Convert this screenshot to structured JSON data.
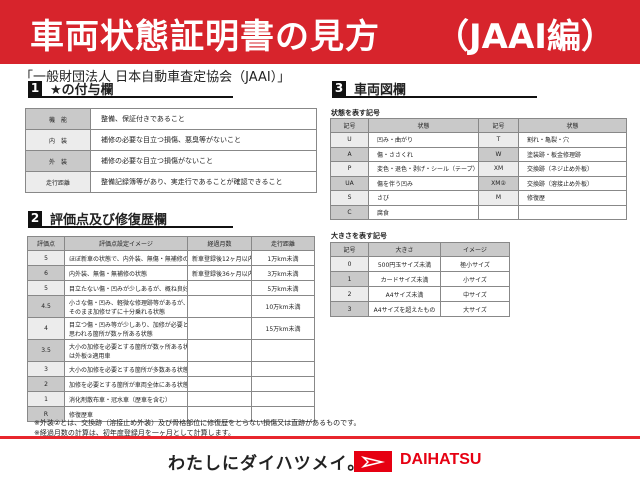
{
  "header": {
    "title": "車両状態証明書の見方",
    "subtitle": "（JAAI編）"
  },
  "organization": "「一般財団法人 日本自動車査定協会（JAAI）」",
  "section1": {
    "num": "1",
    "title": "★の付与欄",
    "rows": [
      {
        "k": "機　能",
        "v": "整備、保証付きであること"
      },
      {
        "k": "内　装",
        "v": "補修の必要な目立つ損傷、悪臭等がないこと"
      },
      {
        "k": "外　装",
        "v": "補修の必要な目立つ損傷がないこと"
      },
      {
        "k": "走行距離",
        "v": "整備記録簿等があり、実走行であることが確認できること"
      }
    ]
  },
  "section2": {
    "num": "2",
    "title": "評価点及び修復歴欄",
    "headers": [
      "評価点",
      "評価点設定イメージ",
      "経過月数",
      "走行距離"
    ],
    "rows": [
      {
        "score": "5",
        "image": "ほぼ新車の状態で、内外装、無傷・無補修の状態",
        "months": "新車登録後12ヶ月以内",
        "distance": "1万km未満"
      },
      {
        "score": "6",
        "image": "内外装、無傷・無補修の状態",
        "months": "新車登録後36ヶ月以内",
        "distance": "3万km未満"
      },
      {
        "score": "5",
        "image": "目立たない傷・凹みが少しあるが、概ね良好な状態",
        "months": "",
        "distance": "5万km未満"
      },
      {
        "score": "4.5",
        "image": "小さな傷・凹み、軽微な修理跡等があるが、",
        "image2": "そのまま加修せずに十分乗れる状態",
        "months": "",
        "distance": "10万km未満"
      },
      {
        "score": "4",
        "image": "目立つ傷・凹み等が少しあり、加修が必要と",
        "image2": "思われる箇所が数ヶ所ある状態",
        "months": "",
        "distance": "15万km未満"
      },
      {
        "score": "3.5",
        "image": "大小の加修を必要とする箇所が数ヶ所ある状態又",
        "image2": "は外板②適用車",
        "months": "",
        "distance": ""
      },
      {
        "score": "3",
        "image": "大小の加修を必要とする箇所が多数ある状態",
        "months": "",
        "distance": ""
      },
      {
        "score": "2",
        "image": "加修を必要とする箇所が車両全体にある状態",
        "months": "",
        "distance": ""
      },
      {
        "score": "1",
        "image": "消化剤散布車・冠水車（歴車を含む）",
        "months": "",
        "distance": ""
      },
      {
        "score": "R",
        "image": "修復歴車",
        "months": "",
        "distance": ""
      }
    ],
    "notes": [
      "※外装②とは、交換跡（溶接止め外装）及び骨格部位に修復歴をとらない損傷又は直跡があるものです。",
      "※経過月数の計算は、初年度登録月を一ヶ月として計算します。"
    ]
  },
  "section3": {
    "num": "3",
    "title": "車両図欄",
    "state_label": "状態を表す記号",
    "state_headers": [
      "記号",
      "状態",
      "記号",
      "状態"
    ],
    "state_rows": [
      [
        "U",
        "凹み・曲がり",
        "T",
        "割れ・亀裂・穴"
      ],
      [
        "A",
        "傷・ささくれ",
        "W",
        "塗装跡・板金修理跡"
      ],
      [
        "P",
        "変色・退色・剥げ・シール（テープ）跡",
        "XM",
        "交換跡（ネジ止め外板）"
      ],
      [
        "UA",
        "傷を伴う凹み",
        "XM②",
        "交換跡（溶接止め外板）"
      ],
      [
        "S",
        "さび",
        "M",
        "修復歴"
      ],
      [
        "C",
        "腐食",
        "",
        ""
      ]
    ],
    "size_label": "大きさを表す記号",
    "size_headers": [
      "記号",
      "大きさ",
      "イメージ"
    ],
    "size_rows": [
      [
        "0",
        "500円玉サイズ未満",
        "極小サイズ"
      ],
      [
        "1",
        "カードサイズ未満",
        "小サイズ"
      ],
      [
        "2",
        "A4サイズ未満",
        "中サイズ"
      ],
      [
        "3",
        "A4サイズを超えたもの",
        "大サイズ"
      ]
    ]
  },
  "footer": {
    "slogan": "わたしにダイハツメイ。",
    "brand": "DAIHATSU",
    "brand_color": "#e60012"
  },
  "colors": {
    "header_red": "#d7242c"
  }
}
